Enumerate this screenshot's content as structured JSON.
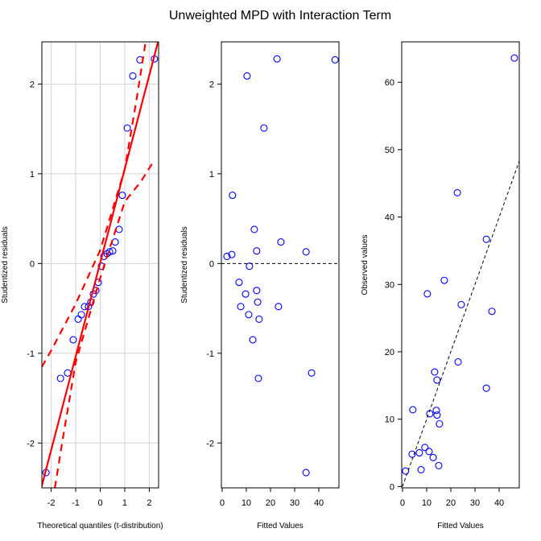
{
  "title": "Unweighted MPD with Interaction Term",
  "chart_data": [
    {
      "type": "scatter",
      "xlabel": "Theoretical quantiles (t-distribution)",
      "ylabel": "Studentized residuals",
      "xlim": [
        -2.38,
        2.38
      ],
      "ylim": [
        -2.5,
        2.47
      ],
      "xticks": [
        -2,
        -1,
        0,
        1,
        2
      ],
      "yticks": [
        -2,
        -1,
        0,
        1,
        2
      ],
      "grid": true,
      "series": [
        {
          "mode": "markers",
          "color": "#0000ff",
          "x": [
            -2.21,
            -1.62,
            -1.33,
            -1.1,
            -0.9,
            -0.77,
            -0.64,
            -0.48,
            -0.38,
            -0.28,
            -0.18,
            -0.08,
            0.05,
            0.15,
            0.28,
            0.38,
            0.51,
            0.61,
            0.77,
            0.9,
            1.1,
            1.33,
            1.62,
            2.21
          ],
          "values": [
            -2.33,
            -1.28,
            -1.22,
            -0.85,
            -0.62,
            -0.57,
            -0.48,
            -0.48,
            -0.43,
            -0.34,
            -0.3,
            -0.21,
            -0.03,
            0.08,
            0.11,
            0.13,
            0.14,
            0.24,
            0.38,
            0.76,
            1.51,
            2.09,
            2.27,
            2.28
          ]
        },
        {
          "mode": "line",
          "color": "#ff0000",
          "dash": false,
          "width": 2.2,
          "x": [
            -2.5,
            2.5
          ],
          "values": [
            -2.6,
            2.62
          ]
        },
        {
          "mode": "line",
          "color": "#ff0000",
          "dash": true,
          "width": 2.2,
          "x": [
            -2.38,
            -2,
            -1,
            0,
            1,
            1.5,
            1.85
          ],
          "values": [
            -1.15,
            -0.97,
            -0.45,
            0.15,
            1.05,
            1.86,
            2.47
          ]
        },
        {
          "mode": "line",
          "color": "#ff0000",
          "dash": true,
          "width": 2.2,
          "x": [
            -1.85,
            -1.5,
            -1,
            0,
            1,
            1.65,
            2.2
          ],
          "values": [
            -2.5,
            -1.91,
            -1.1,
            -0.16,
            0.69,
            0.91,
            1.15
          ]
        }
      ]
    },
    {
      "type": "scatter",
      "xlabel": "Fitted Values",
      "ylabel": "Studentized residuals",
      "xlim": [
        -0.3,
        48.3
      ],
      "ylim": [
        -2.5,
        2.47
      ],
      "xticks": [
        0,
        10,
        20,
        30,
        40
      ],
      "yticks": [
        -2,
        -1,
        0,
        1,
        2
      ],
      "grid": false,
      "series": [
        {
          "mode": "markers",
          "color": "#0000ff",
          "x": [
            2,
            4,
            4.3,
            7,
            7.7,
            9.7,
            10.3,
            11,
            11.3,
            12.7,
            13.3,
            14.3,
            14.3,
            14.7,
            15.3,
            15,
            17.3,
            22.7,
            23.3,
            24.3,
            34.7,
            34.7,
            37,
            46.7
          ],
          "values": [
            0.08,
            0.1,
            0.76,
            -0.21,
            -0.48,
            -0.34,
            2.09,
            -0.57,
            -0.03,
            -0.85,
            0.38,
            0.14,
            -0.3,
            -0.43,
            -0.62,
            -1.28,
            1.51,
            2.28,
            -0.48,
            0.24,
            0.13,
            -2.33,
            -1.22,
            2.27
          ]
        },
        {
          "mode": "line",
          "color": "#000000",
          "dash": true,
          "width": 1,
          "x": [
            -0.3,
            48.3
          ],
          "values": [
            0,
            0
          ]
        }
      ]
    },
    {
      "type": "scatter",
      "xlabel": "Fitted Values",
      "ylabel": "Observed values",
      "xlim": [
        -0.3,
        48.3
      ],
      "ylim": [
        -0.2,
        66
      ],
      "xticks": [
        0,
        10,
        20,
        30,
        40
      ],
      "yticks": [
        0,
        10,
        20,
        30,
        40,
        50,
        60
      ],
      "grid": false,
      "series": [
        {
          "mode": "markers",
          "color": "#0000ff",
          "x": [
            1.3,
            4,
            4.3,
            7,
            7.7,
            9.3,
            10.3,
            11,
            11.3,
            12.7,
            13.3,
            14,
            14.3,
            14.3,
            15.3,
            15,
            17.3,
            22.7,
            23,
            24.3,
            34.7,
            34.7,
            37,
            46.3
          ],
          "values": [
            2.3,
            4.8,
            11.4,
            5,
            2.5,
            5.8,
            28.6,
            5.2,
            10.8,
            4.3,
            17,
            11.3,
            10.6,
            15.8,
            9.3,
            3.1,
            30.6,
            43.6,
            18.5,
            27,
            36.7,
            14.6,
            26,
            63.6
          ]
        },
        {
          "mode": "line",
          "color": "#000000",
          "dash": true,
          "width": 1,
          "x": [
            0,
            48.3
          ],
          "values": [
            0,
            48.3
          ]
        }
      ]
    }
  ]
}
